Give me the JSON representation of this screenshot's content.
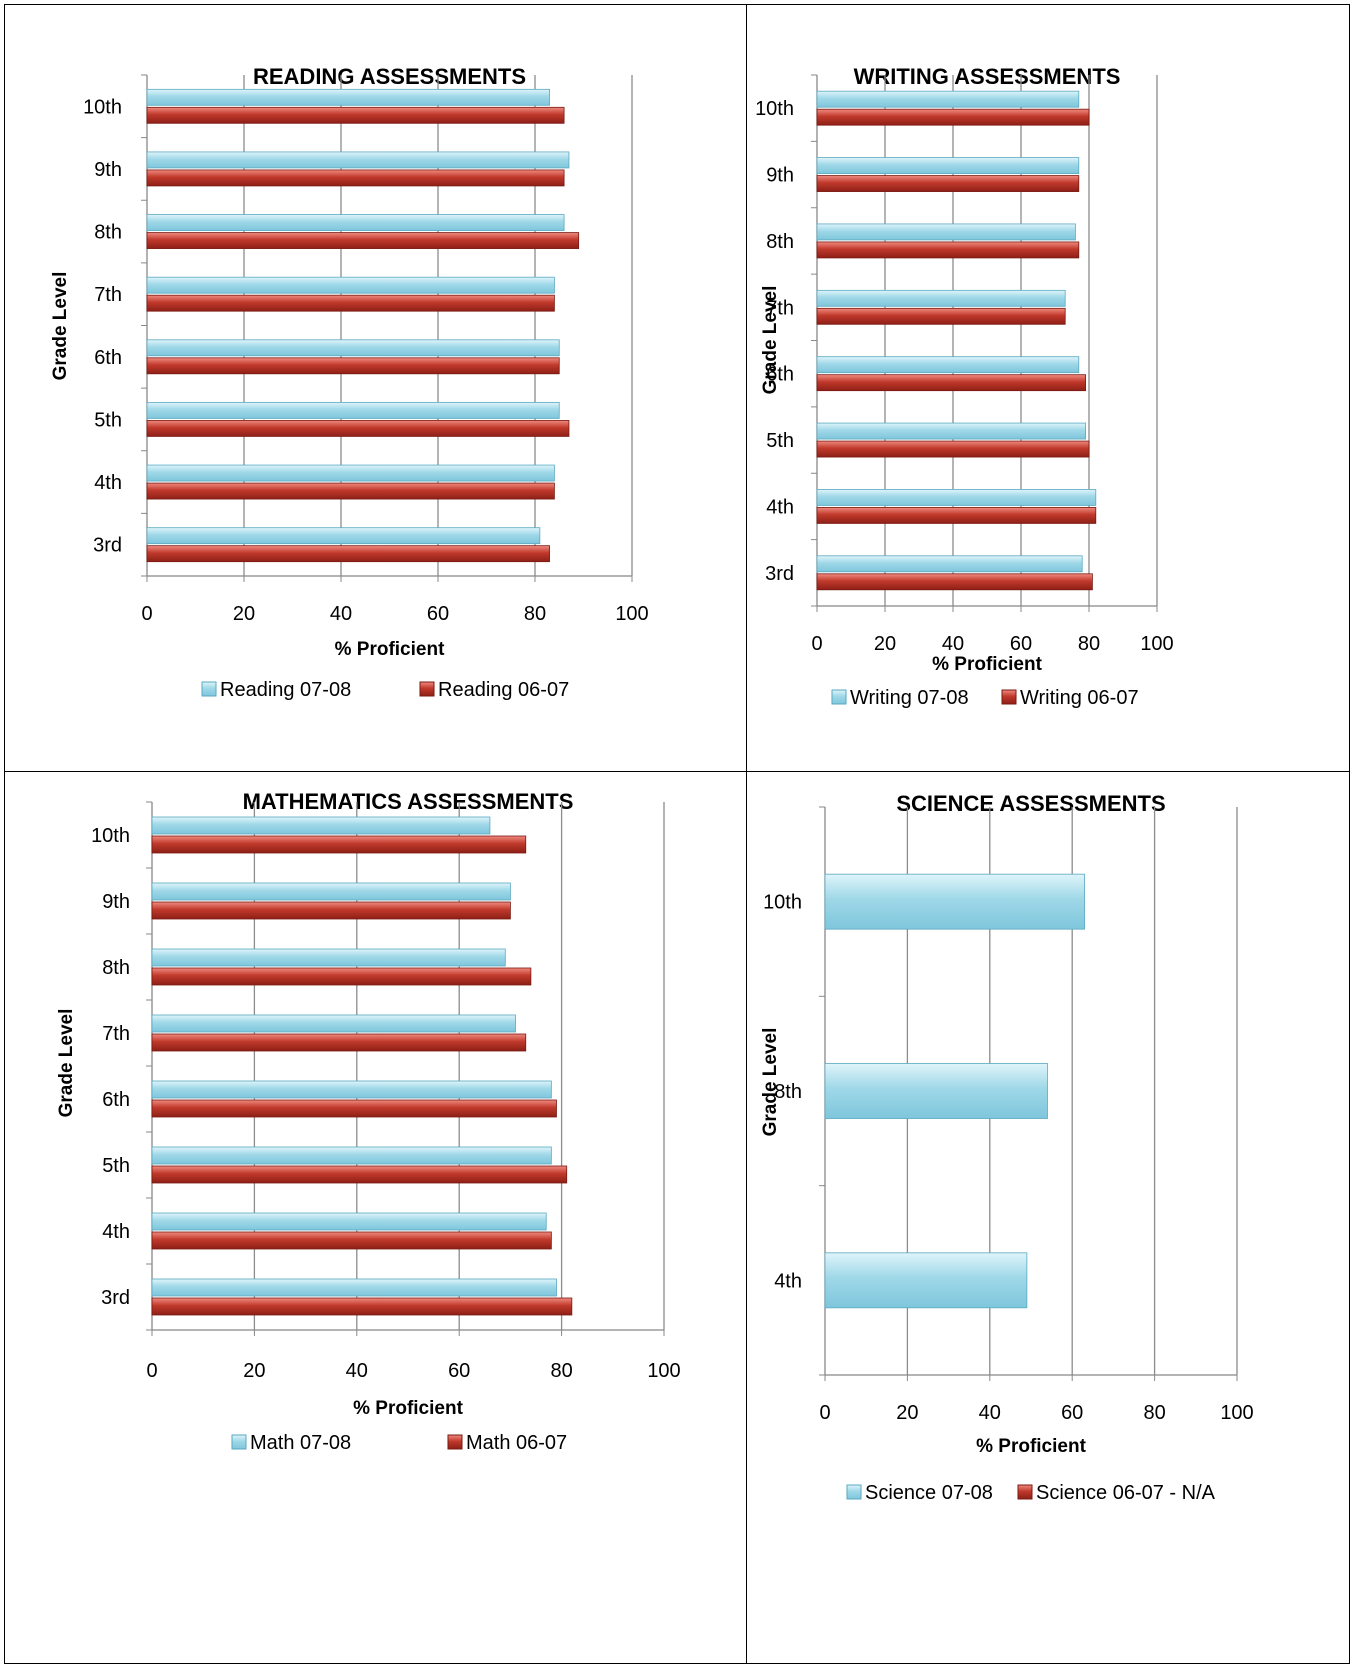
{
  "chart_data": [
    {
      "type": "bar",
      "orientation": "horizontal",
      "title": "READING ASSESSMENTS",
      "xlabel": "% Proficient",
      "ylabel": "Grade Level",
      "xlim": [
        0,
        100
      ],
      "xticks": [
        0,
        20,
        40,
        60,
        80,
        100
      ],
      "grid": true,
      "legend_position": "bottom",
      "categories": [
        "3rd",
        "4th",
        "5th",
        "6th",
        "7th",
        "8th",
        "9th",
        "10th"
      ],
      "series": [
        {
          "name": "Reading 07-08",
          "color": "#9fd8e8",
          "values": [
            81,
            84,
            85,
            85,
            84,
            86,
            87,
            83
          ]
        },
        {
          "name": "Reading 06-07",
          "color": "#c0392b",
          "values": [
            83,
            84,
            87,
            85,
            84,
            89,
            86,
            86
          ]
        }
      ]
    },
    {
      "type": "bar",
      "orientation": "horizontal",
      "title": "WRITING ASSESSMENTS",
      "xlabel": "% Proficient",
      "ylabel": "Grade Level",
      "xlim": [
        0,
        100
      ],
      "xticks": [
        0,
        20,
        40,
        60,
        80,
        100
      ],
      "grid": true,
      "legend_position": "bottom",
      "categories": [
        "3rd",
        "4th",
        "5th",
        "6th",
        "7th",
        "8th",
        "9th",
        "10th"
      ],
      "series": [
        {
          "name": "Writing 07-08",
          "color": "#9fd8e8",
          "values": [
            78,
            82,
            79,
            77,
            73,
            76,
            77,
            77
          ]
        },
        {
          "name": "Writing 06-07",
          "color": "#c0392b",
          "values": [
            81,
            82,
            80,
            79,
            73,
            77,
            77,
            80
          ]
        }
      ]
    },
    {
      "type": "bar",
      "orientation": "horizontal",
      "title": "MATHEMATICS ASSESSMENTS",
      "xlabel": "% Proficient",
      "ylabel": "Grade Level",
      "xlim": [
        0,
        100
      ],
      "xticks": [
        0,
        20,
        40,
        60,
        80,
        100
      ],
      "grid": true,
      "legend_position": "bottom",
      "categories": [
        "3rd",
        "4th",
        "5th",
        "6th",
        "7th",
        "8th",
        "9th",
        "10th"
      ],
      "series": [
        {
          "name": "Math 07-08",
          "color": "#9fd8e8",
          "values": [
            79,
            77,
            78,
            78,
            71,
            69,
            70,
            66
          ]
        },
        {
          "name": "Math 06-07",
          "color": "#c0392b",
          "values": [
            82,
            78,
            81,
            79,
            73,
            74,
            70,
            73
          ]
        }
      ]
    },
    {
      "type": "bar",
      "orientation": "horizontal",
      "title": "SCIENCE ASSESSMENTS",
      "xlabel": "% Proficient",
      "ylabel": "Grade Level",
      "xlim": [
        0,
        100
      ],
      "xticks": [
        0,
        20,
        40,
        60,
        80,
        100
      ],
      "grid": true,
      "legend_position": "bottom",
      "categories": [
        "4th",
        "8th",
        "10th"
      ],
      "series": [
        {
          "name": "Science 07-08",
          "color": "#9fd8e8",
          "values": [
            49,
            54,
            63
          ]
        },
        {
          "name": "Science 06-07 - N/A",
          "color": "#c0392b",
          "values": [
            null,
            null,
            null
          ]
        }
      ]
    }
  ]
}
